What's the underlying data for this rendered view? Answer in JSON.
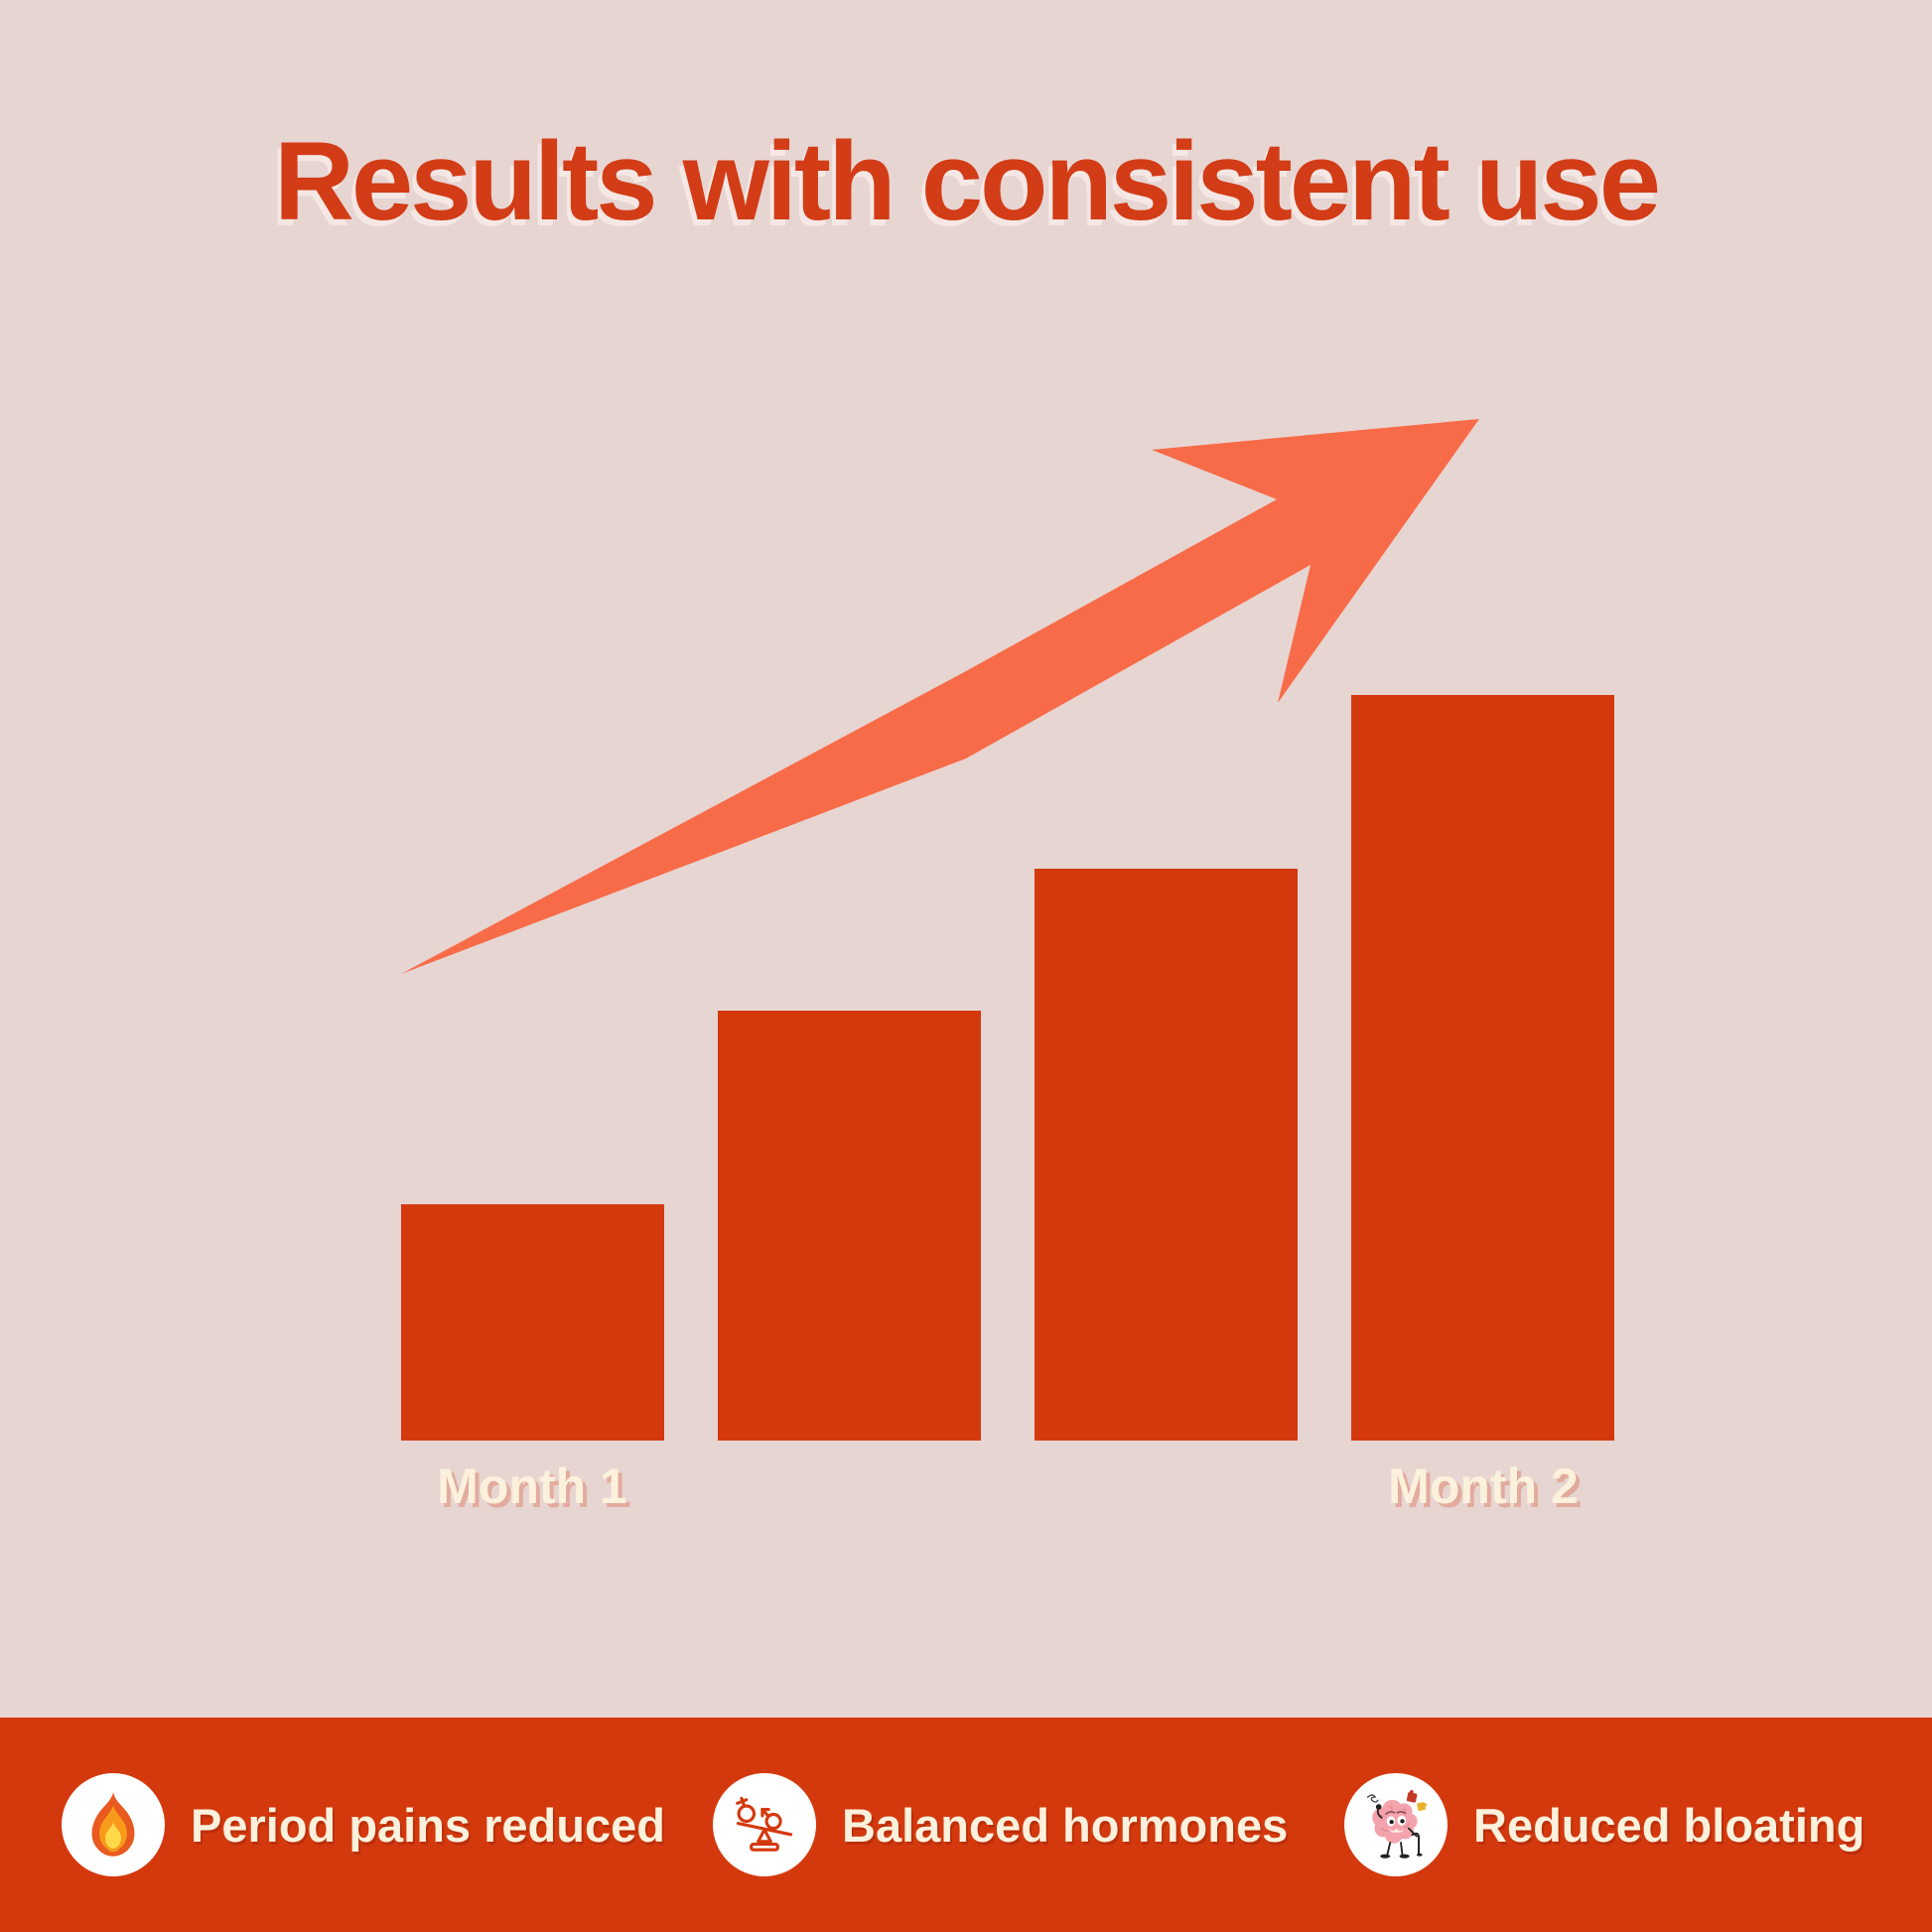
{
  "title": "Results with consistent use",
  "chart_data": {
    "type": "bar",
    "title": "Results with consistent use",
    "categories": [
      "Month 1",
      "",
      "",
      "Month 2"
    ],
    "values": [
      31.7,
      57.7,
      76.7,
      100
    ],
    "values_unit": "relative bar height, percent of tallest bar (no numeric axis shown)",
    "xlabel": "",
    "ylabel": "",
    "grid": false,
    "legend": false,
    "annotations": [
      "upward trend arrow from first bar toward top right"
    ],
    "bar_color": "#d4390e",
    "arrow_color": "#f86b48"
  },
  "axis_labels": {
    "month1": "Month 1",
    "month2": "Month 2"
  },
  "banner": {
    "items": [
      {
        "icon": "fire-icon",
        "label": "Period pains reduced"
      },
      {
        "icon": "hormone-balance-icon",
        "label": "Balanced hormones"
      },
      {
        "icon": "brain-icon",
        "label": "Reduced bloating"
      }
    ]
  },
  "colors": {
    "background": "#e7d5d2",
    "primary_red": "#d4390e",
    "title_red": "#d23c16",
    "arrow_orange": "#f86b48",
    "cream_text": "#fbf1dc"
  }
}
